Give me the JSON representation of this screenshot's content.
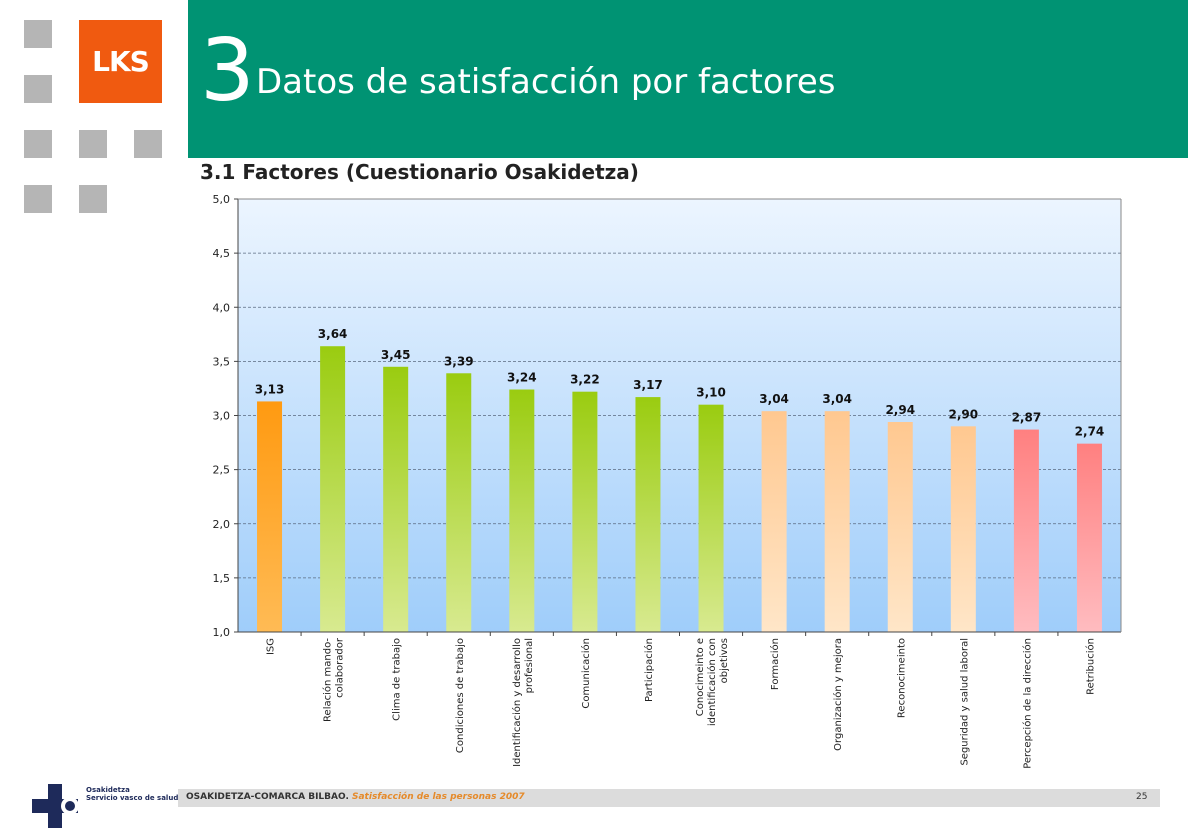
{
  "logo": {
    "text": "LKS"
  },
  "header": {
    "section_number": "3",
    "title": "Datos de satisfacción por factores"
  },
  "subtitle": "3.1 Factores (Cuestionario Osakidetza)",
  "chart_data": {
    "type": "bar",
    "title": "",
    "xlabel": "",
    "ylabel": "",
    "ylim": [
      1.0,
      5.0
    ],
    "yticks": [
      "1,0",
      "1,5",
      "2,0",
      "2,5",
      "3,0",
      "3,5",
      "4,0",
      "4,5",
      "5,0"
    ],
    "grid": true,
    "categories": [
      [
        "ISG"
      ],
      [
        "Relación mando-",
        "colaborador"
      ],
      [
        "Clima de trabajo"
      ],
      [
        "Condiciones de trabajo"
      ],
      [
        "Identificación y desarrollo",
        "profesional"
      ],
      [
        "Comunicación"
      ],
      [
        "Participación"
      ],
      [
        "Conocimeinto e",
        "identificación con",
        "objetivos"
      ],
      [
        "Formación"
      ],
      [
        "Organización y mejora"
      ],
      [
        "Reconocimeinto"
      ],
      [
        "Seguridad y salud laboral"
      ],
      [
        "Percepción de la dirección"
      ],
      [
        "Retribución"
      ]
    ],
    "values": [
      3.13,
      3.64,
      3.45,
      3.39,
      3.24,
      3.22,
      3.17,
      3.1,
      3.04,
      3.04,
      2.94,
      2.9,
      2.87,
      2.74
    ],
    "value_labels": [
      "3,13",
      "3,64",
      "3,45",
      "3,39",
      "3,24",
      "3,22",
      "3,17",
      "3,10",
      "3,04",
      "3,04",
      "2,94",
      "2,90",
      "2,87",
      "2,74"
    ],
    "bar_colors": [
      [
        "#ffbb55",
        "#ff9a11"
      ],
      [
        "#d8ea90",
        "#9acc10"
      ],
      [
        "#d8ea90",
        "#9acc10"
      ],
      [
        "#d8ea90",
        "#9acc10"
      ],
      [
        "#d8ea90",
        "#9acc10"
      ],
      [
        "#d8ea90",
        "#9acc10"
      ],
      [
        "#d8ea90",
        "#9acc10"
      ],
      [
        "#d8ea90",
        "#9acc10"
      ],
      [
        "#ffe6c8",
        "#ffc890"
      ],
      [
        "#ffe6c8",
        "#ffc890"
      ],
      [
        "#ffe6c8",
        "#ffc890"
      ],
      [
        "#ffe6c8",
        "#ffc890"
      ],
      [
        "#ffbcc0",
        "#ff8080"
      ],
      [
        "#ffbcc0",
        "#ff8080"
      ]
    ]
  },
  "footer": {
    "org": "OSAKIDETZA-COMARCA BILBAO.",
    "subtitle": "Satisfacción de las personas 2007",
    "page_number": "25",
    "brand_line1": "Osakidetza",
    "brand_line2": "Servicio vasco de salud"
  }
}
